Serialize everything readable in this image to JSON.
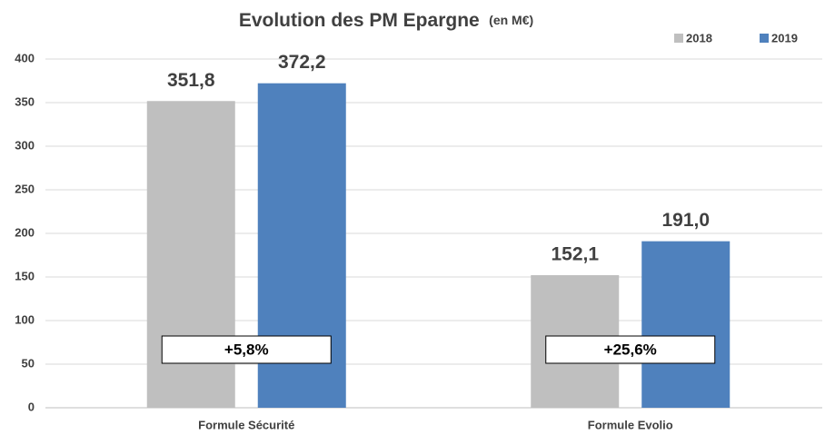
{
  "chart_data": {
    "type": "bar",
    "title": "Evolution des PM Epargne",
    "subtitle": "(en M€)",
    "categories": [
      "Formule Sécurité",
      "Formule Evolio"
    ],
    "series": [
      {
        "name": "2018",
        "color": "#bfbfbf",
        "values": [
          351.8,
          152.1
        ],
        "value_labels": [
          "351,8",
          "152,1"
        ]
      },
      {
        "name": "2019",
        "color": "#4f81bd",
        "values": [
          372.2,
          191.0
        ],
        "value_labels": [
          "372,2",
          "191,0"
        ]
      }
    ],
    "annotations": [
      "+5,8%",
      "+25,6%"
    ],
    "ylim": [
      0,
      400
    ],
    "yticks": [
      0,
      50,
      100,
      150,
      200,
      250,
      300,
      350,
      400
    ],
    "grid": true,
    "legend": "top-right"
  }
}
